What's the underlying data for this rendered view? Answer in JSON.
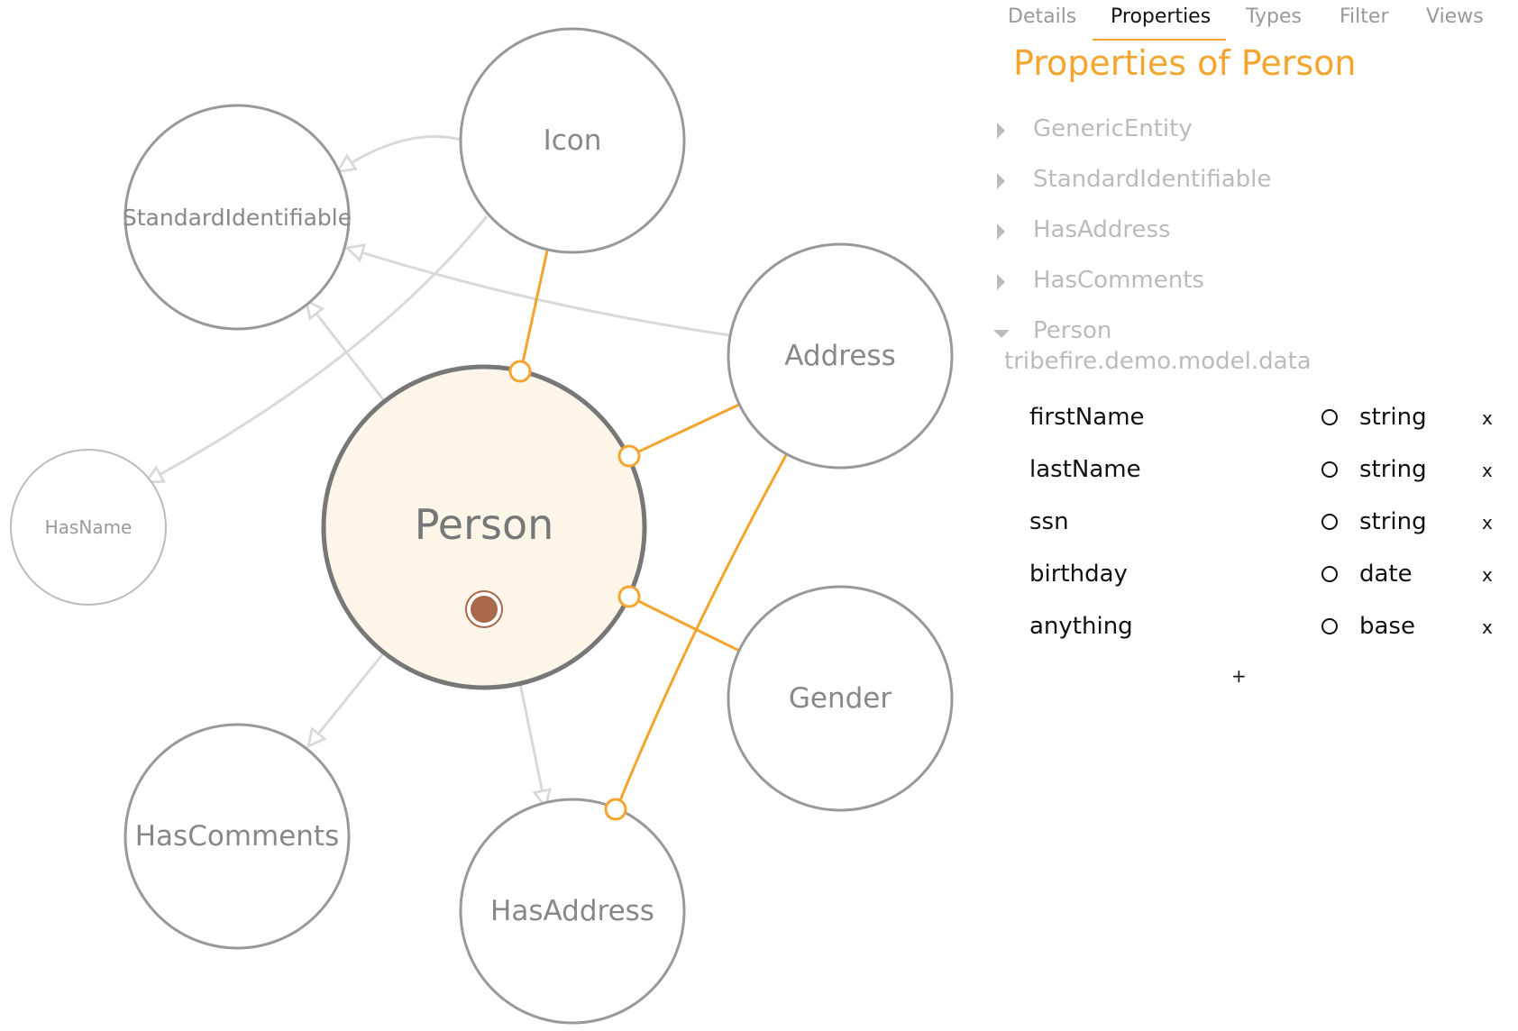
{
  "tabs": [
    {
      "label": "Details",
      "active": false
    },
    {
      "label": "Properties",
      "active": true
    },
    {
      "label": "Types",
      "active": false
    },
    {
      "label": "Filter",
      "active": false
    },
    {
      "label": "Views",
      "active": false
    }
  ],
  "panel_title": "Properties of Person",
  "tree": [
    {
      "label": "GenericEntity",
      "expanded": false
    },
    {
      "label": "StandardIdentifiable",
      "expanded": false
    },
    {
      "label": "HasAddress",
      "expanded": false
    },
    {
      "label": "HasComments",
      "expanded": false
    },
    {
      "label": "Person",
      "expanded": true
    }
  ],
  "package": "tribefire.demo.model.data",
  "properties": [
    {
      "name": "firstName",
      "type": "string",
      "remove": "x"
    },
    {
      "name": "lastName",
      "type": "string",
      "remove": "x"
    },
    {
      "name": "ssn",
      "type": "string",
      "remove": "x"
    },
    {
      "name": "birthday",
      "type": "date",
      "remove": "x"
    },
    {
      "name": "anything",
      "type": "base",
      "remove": "x"
    }
  ],
  "add_label": "+",
  "graph": {
    "nodes": {
      "icon": "Icon",
      "standard_identifiable": "StandardIdentifiable",
      "address": "Address",
      "hasname": "HasName",
      "person": "Person",
      "gender": "Gender",
      "hascomments": "HasComments",
      "hasaddress": "HasAddress"
    }
  },
  "colors": {
    "accent": "#f5a52d",
    "node_border": "#999999",
    "focus_fill": "#fdf6e8",
    "inheritance_edge": "#d9d9d9",
    "marker": "#a9694a"
  }
}
